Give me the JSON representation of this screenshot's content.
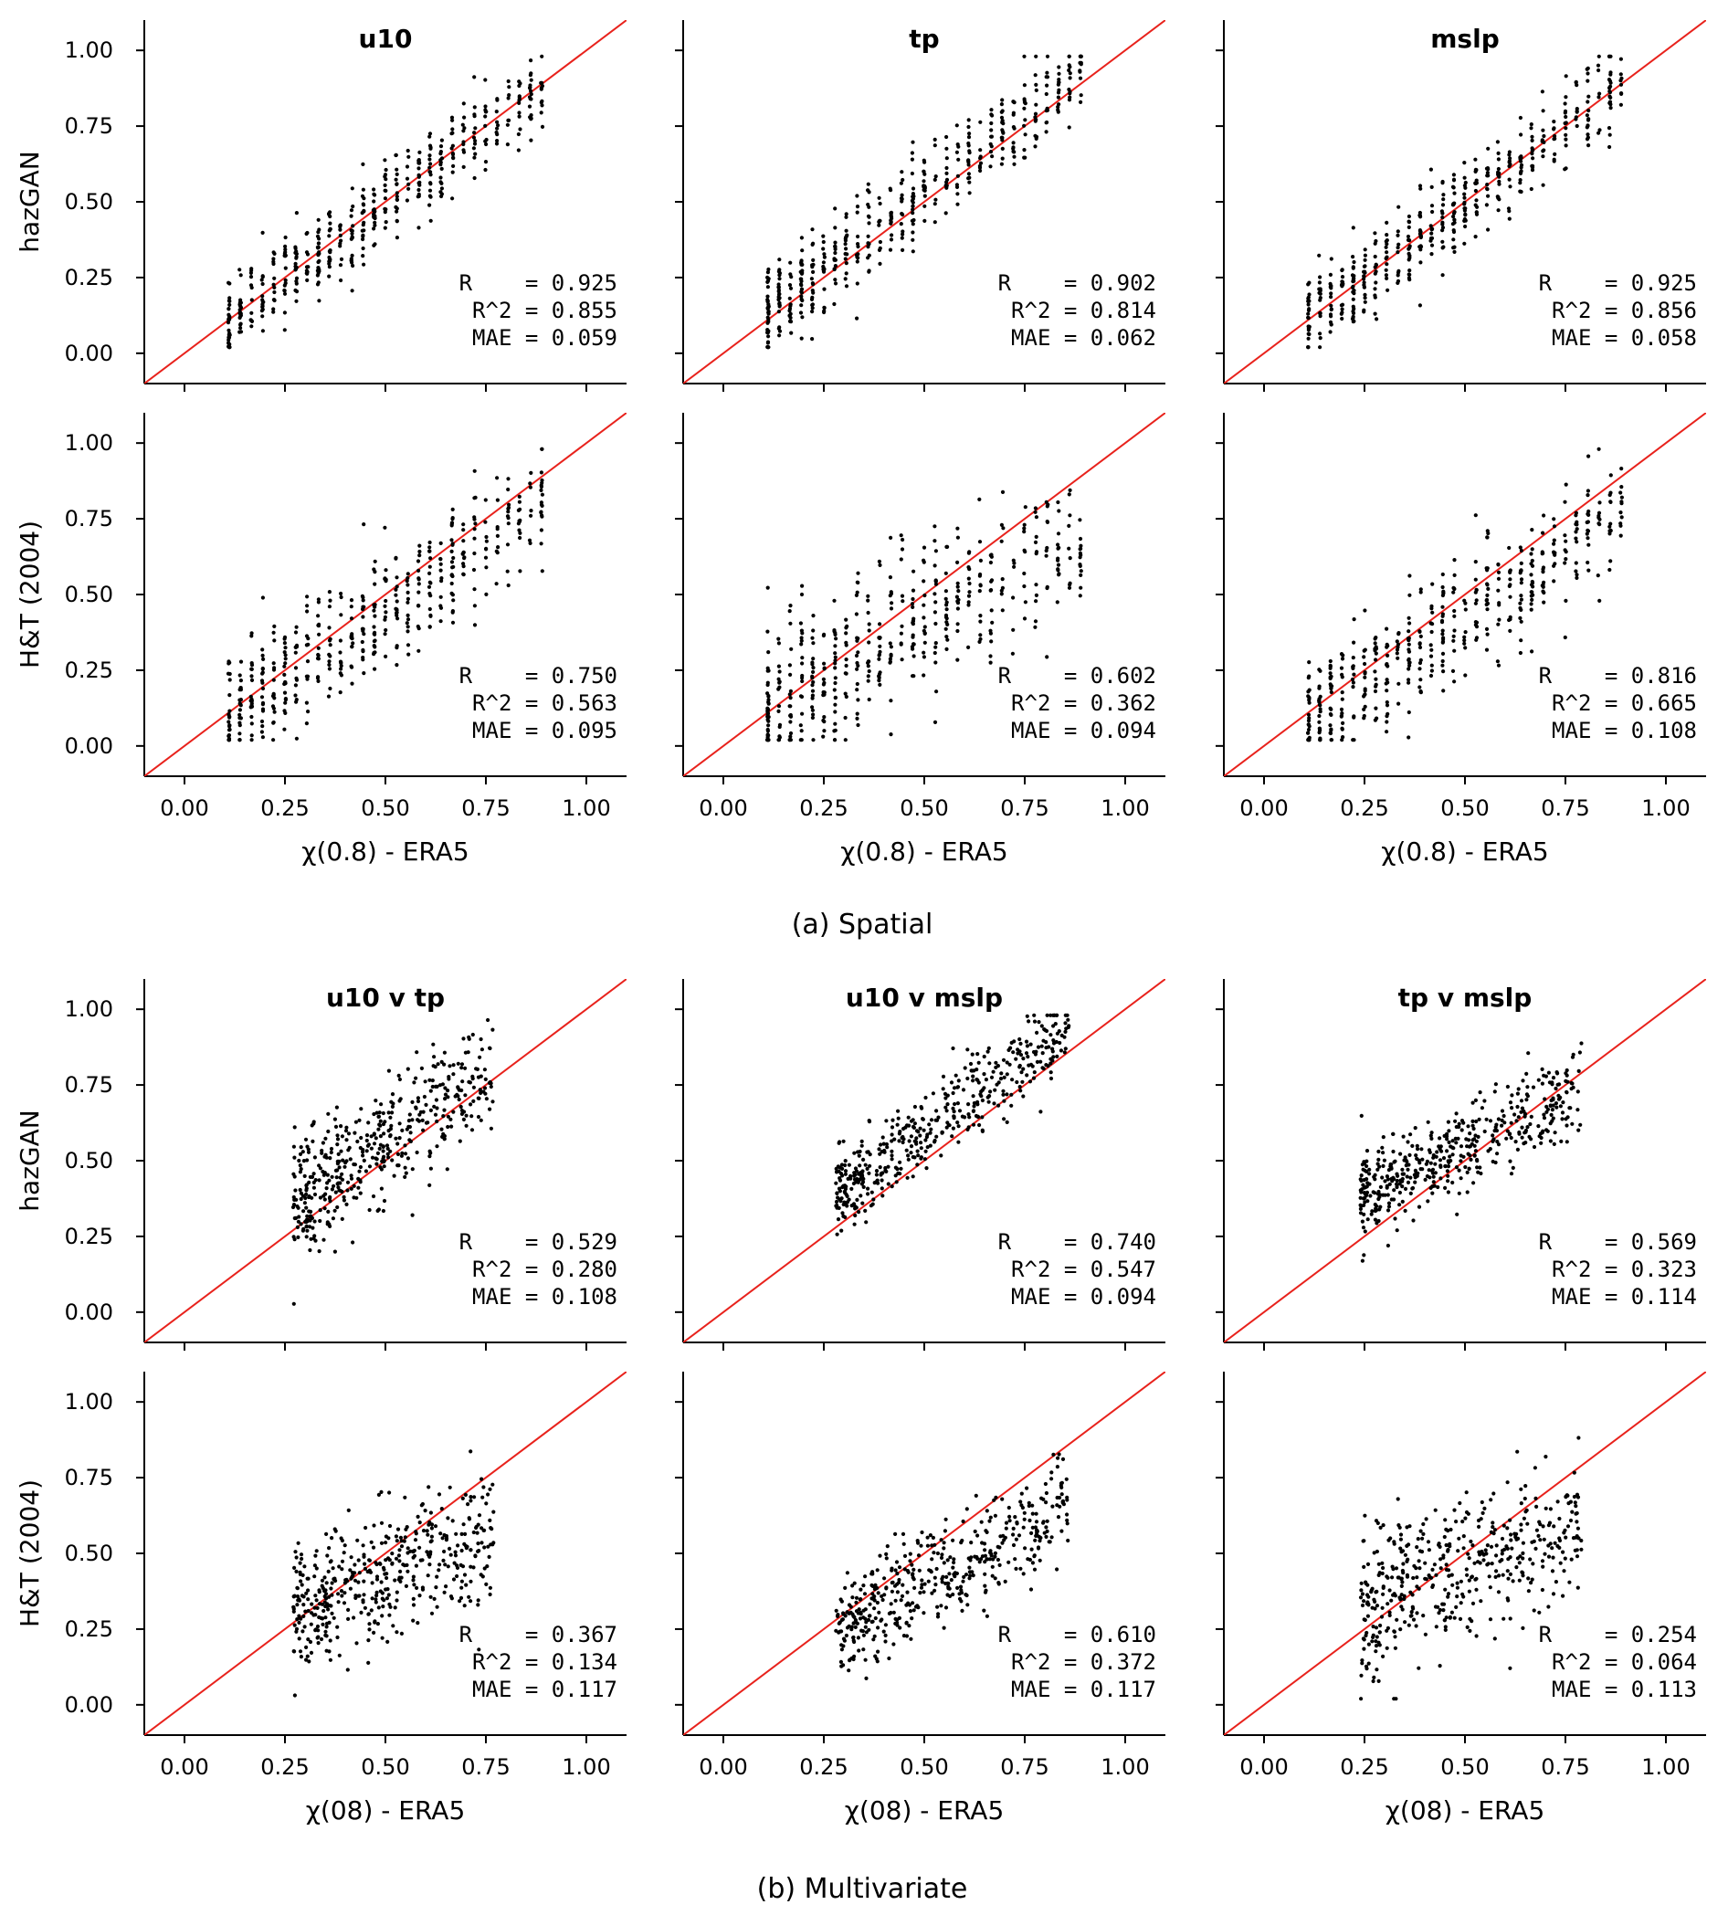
{
  "figure": {
    "captions": [
      "(a) Spatial",
      "(b) Multivariate"
    ],
    "colors": {
      "points": "#000000",
      "identity_line": "#e8221c",
      "axes": "#000000"
    }
  },
  "chart_data": [
    {
      "type": "scatter",
      "section": "(a) Spatial",
      "title": "u10",
      "ylabel": "hazGAN",
      "xlabel": "",
      "x_range": [
        0.1,
        0.9
      ],
      "y_intercept": 0.0,
      "spread": 0.07,
      "seed": 11,
      "stats": {
        "R": "0.925",
        "R2": "0.855",
        "MAE": "0.059"
      }
    },
    {
      "type": "scatter",
      "section": "(a) Spatial",
      "title": "tp",
      "ylabel": "",
      "xlabel": "",
      "x_range": [
        0.1,
        0.9
      ],
      "y_intercept": 0.03,
      "spread": 0.08,
      "seed": 12,
      "stats": {
        "R": "0.902",
        "R2": "0.814",
        "MAE": "0.062"
      }
    },
    {
      "type": "scatter",
      "section": "(a) Spatial",
      "title": "mslp",
      "ylabel": "",
      "xlabel": "",
      "x_range": [
        0.1,
        0.9
      ],
      "y_intercept": 0.0,
      "spread": 0.07,
      "seed": 13,
      "stats": {
        "R": "0.925",
        "R2": "0.856",
        "MAE": "0.058"
      }
    },
    {
      "type": "scatter",
      "section": "(a) Spatial",
      "title": "",
      "ylabel": "H&T (2004)",
      "xlabel": "χ(0.8) - ERA5",
      "x_range": [
        0.1,
        0.9
      ],
      "y_intercept": 0.0,
      "spread": 0.1,
      "seed": 21,
      "slope": 0.9,
      "stats": {
        "R": "0.750",
        "R2": "0.563",
        "MAE": "0.095"
      }
    },
    {
      "type": "scatter",
      "section": "(a) Spatial",
      "title": "",
      "ylabel": "",
      "xlabel": "χ(0.8) - ERA5",
      "x_range": [
        0.1,
        0.9
      ],
      "y_intercept": 0.08,
      "spread": 0.13,
      "seed": 22,
      "slope": 0.65,
      "stats": {
        "R": "0.602",
        "R2": "0.362",
        "MAE": "0.094"
      }
    },
    {
      "type": "scatter",
      "section": "(a) Spatial",
      "title": "",
      "ylabel": "",
      "xlabel": "χ(0.8) - ERA5",
      "x_range": [
        0.1,
        0.9
      ],
      "y_intercept": -0.02,
      "spread": 0.1,
      "seed": 23,
      "slope": 0.9,
      "stats": {
        "R": "0.816",
        "R2": "0.665",
        "MAE": "0.108"
      }
    },
    {
      "type": "scatter",
      "section": "(b) Multivariate",
      "title": "u10 v tp",
      "ylabel": "hazGAN",
      "xlabel": "",
      "x_range": [
        0.27,
        0.77
      ],
      "y_intercept": 0.14,
      "spread": 0.1,
      "seed": 31,
      "slope": 0.85,
      "stats": {
        "R": "0.529",
        "R2": "0.280",
        "MAE": "0.108"
      }
    },
    {
      "type": "scatter",
      "section": "(b) Multivariate",
      "title": "u10 v mslp",
      "ylabel": "",
      "xlabel": "",
      "x_range": [
        0.28,
        0.86
      ],
      "y_intercept": 0.12,
      "spread": 0.07,
      "seed": 32,
      "slope": 0.95,
      "stats": {
        "R": "0.740",
        "R2": "0.547",
        "MAE": "0.094"
      }
    },
    {
      "type": "scatter",
      "section": "(b) Multivariate",
      "title": "tp v mslp",
      "ylabel": "",
      "xlabel": "",
      "x_range": [
        0.24,
        0.79
      ],
      "y_intercept": 0.25,
      "spread": 0.07,
      "seed": 33,
      "slope": 0.6,
      "stats": {
        "R": "0.569",
        "R2": "0.323",
        "MAE": "0.114"
      }
    },
    {
      "type": "scatter",
      "section": "(b) Multivariate",
      "title": "",
      "ylabel": "H&T (2004)",
      "xlabel": "χ(08) - ERA5",
      "x_range": [
        0.27,
        0.77
      ],
      "y_intercept": 0.17,
      "spread": 0.11,
      "seed": 41,
      "slope": 0.5,
      "stats": {
        "R": "0.367",
        "R2": "0.134",
        "MAE": "0.117"
      }
    },
    {
      "type": "scatter",
      "section": "(b) Multivariate",
      "title": "",
      "ylabel": "",
      "xlabel": "χ(08) - ERA5",
      "x_range": [
        0.28,
        0.86
      ],
      "y_intercept": 0.05,
      "spread": 0.09,
      "seed": 42,
      "slope": 0.7,
      "stats": {
        "R": "0.610",
        "R2": "0.372",
        "MAE": "0.117"
      }
    },
    {
      "type": "scatter",
      "section": "(b) Multivariate",
      "title": "",
      "ylabel": "",
      "xlabel": "χ(08) - ERA5",
      "x_range": [
        0.24,
        0.79
      ],
      "y_intercept": 0.2,
      "spread": 0.12,
      "seed": 43,
      "slope": 0.5,
      "stats": {
        "R": "0.254",
        "R2": "0.064",
        "MAE": "0.113"
      }
    }
  ],
  "axes": {
    "xlim": [
      -0.1,
      1.1
    ],
    "ylim": [
      -0.1,
      1.1
    ],
    "xticks": [
      "0.00",
      "0.25",
      "0.50",
      "0.75",
      "1.00"
    ],
    "yticks": [
      "0.00",
      "0.25",
      "0.50",
      "0.75",
      "1.00"
    ],
    "stat_labels": {
      "R": "R    = ",
      "R2": "R^2 = ",
      "MAE": "MAE = "
    }
  }
}
